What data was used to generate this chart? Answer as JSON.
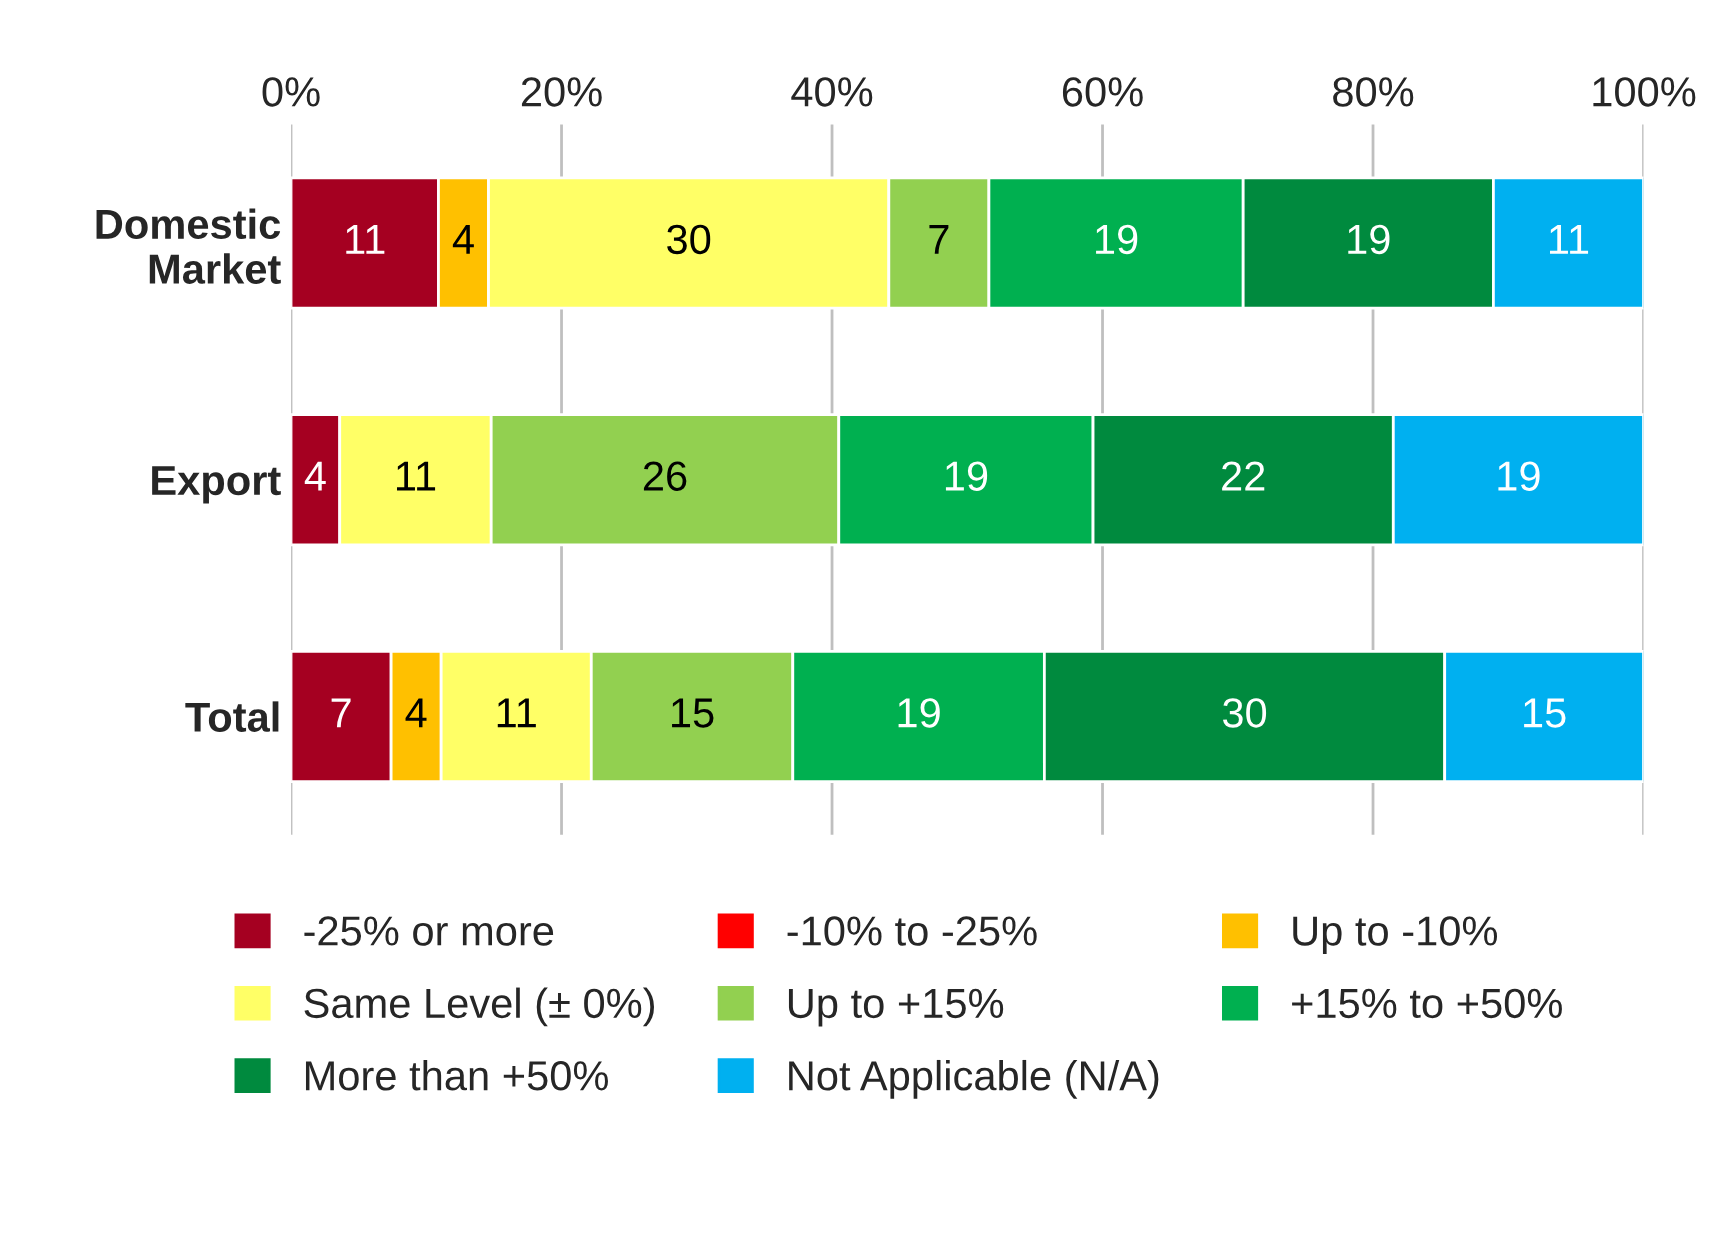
{
  "chart_data": {
    "type": "bar",
    "orientation": "horizontal",
    "stacked": true,
    "categories": [
      "Domestic\nMarket",
      "Export",
      "Total"
    ],
    "series": [
      {
        "name": "-25% or more",
        "color": "#a50021",
        "values": [
          10.9,
          3.6,
          7.4
        ],
        "value_labels": [
          "11",
          "4",
          "7"
        ]
      },
      {
        "name": "-10% to -25%",
        "color": "#ff0000",
        "values": [
          null,
          null,
          null
        ],
        "value_labels": [
          null,
          null,
          null
        ]
      },
      {
        "name": "Up to -10%",
        "color": "#ffc000",
        "values": [
          3.7,
          null,
          3.7
        ],
        "value_labels": [
          "4",
          null,
          "4"
        ]
      },
      {
        "name": "Same Level (± 0%)",
        "color": "#ffff66",
        "values": [
          29.6,
          11.2,
          11.1
        ],
        "value_labels": [
          "30",
          "11",
          "11"
        ]
      },
      {
        "name": "Up to +15%",
        "color": "#92d050",
        "values": [
          7.4,
          25.7,
          14.9
        ],
        "value_labels": [
          "7",
          "26",
          "15"
        ]
      },
      {
        "name": "+15% to +50%",
        "color": "#00b050",
        "values": [
          18.8,
          18.8,
          18.6
        ],
        "value_labels": [
          "19",
          "19",
          "19"
        ]
      },
      {
        "name": "More than +50%",
        "color": "#008a3e",
        "values": [
          18.5,
          22.2,
          29.6
        ],
        "value_labels": [
          "19",
          "22",
          "30"
        ]
      },
      {
        "name": "Not Applicable (N/A)",
        "color": "#00b0f0",
        "values": [
          11.1,
          18.5,
          14.7
        ],
        "value_labels": [
          "11",
          "19",
          "15"
        ]
      }
    ],
    "xlim": [
      0,
      100
    ],
    "xticks": [
      {
        "value": 0,
        "label": "0%"
      },
      {
        "value": 20,
        "label": "20%"
      },
      {
        "value": 40,
        "label": "40%"
      },
      {
        "value": 60,
        "label": "60%"
      },
      {
        "value": 80,
        "label": "80%"
      },
      {
        "value": 100,
        "label": "100%"
      }
    ],
    "grid": "x",
    "legend": "bottom"
  }
}
